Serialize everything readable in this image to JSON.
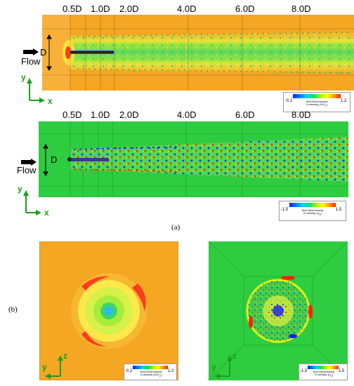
{
  "panel_a": {
    "top": {
      "station_labels": [
        "0.5D",
        "1.0D",
        "2.0D",
        "4.0D",
        "6.0D",
        "8.0D"
      ],
      "diameter_label": "D",
      "flow_label": "Flow",
      "axis_y": "y",
      "axis_x": "x",
      "legend": {
        "min": "-0.2",
        "max": "1.2",
        "title_line1": "Non-Dimensional",
        "title_line2": "U-velocity (U/U",
        "title_sub": "∞",
        "title_end": ")"
      },
      "background_color": "#f5a623"
    },
    "bottom": {
      "station_labels": [
        "0.5D",
        "1.0D",
        "2.0D",
        "4.0D",
        "6.0D",
        "8.0D"
      ],
      "diameter_label": "D",
      "flow_label": "Flow",
      "axis_y": "y",
      "axis_x": "x",
      "legend": {
        "min": "-1.5",
        "max": "1.5",
        "title_line1": "Non-Dimensional",
        "title_line2": "Z-vorticity (ω",
        "title_sub": "z",
        "title_end": ")"
      },
      "background_color": "#2ecc40"
    },
    "caption": "(a)"
  },
  "panel_b": {
    "label": "(b)",
    "left": {
      "axis_z": "z",
      "axis_y": "y",
      "legend": {
        "min": "-0.2",
        "max": "1.2",
        "title_line1": "Non-Dimensional",
        "title_line2": "U-velocity (U/U",
        "title_sub": "∞",
        "title_end": ")"
      }
    },
    "right": {
      "axis_z": "z",
      "axis_y": "y",
      "legend": {
        "min": "-1.5",
        "max": "1.5",
        "title_line1": "Non-Dimensional",
        "title_line2": "X-vorticity (ω",
        "title_sub": "x",
        "title_end": ")"
      }
    }
  },
  "colorbar": [
    "#1a1aff",
    "#0080ff",
    "#00d0ff",
    "#00e070",
    "#a0f000",
    "#ffff00",
    "#ffa000",
    "#ff2000"
  ]
}
